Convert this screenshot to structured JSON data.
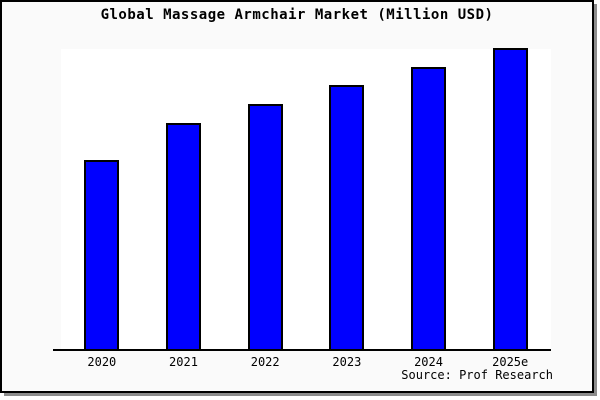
{
  "window": {
    "canvas_background": "#fafafa",
    "plot_background": "#ffffff",
    "frame_border_color": "#000000",
    "shadow_color": "#8c8c8c"
  },
  "chart_data": {
    "type": "bar",
    "title": "Global Massage Armchair Market (Million USD)",
    "categories": [
      "2020",
      "2021",
      "2022",
      "2023",
      "2024",
      "2025e"
    ],
    "values_pct_of_plot_height": [
      62.5,
      74.9,
      81.2,
      87.4,
      93.4,
      99.6
    ],
    "value_labels_shown": false,
    "y_axis_ticks_shown": false,
    "grid": "off",
    "legend": "none",
    "bar_fill_color": "#0000ff",
    "bar_border_color": "#000000",
    "axis_line_color": "#000000",
    "source_note": "Source: Prof Research"
  }
}
